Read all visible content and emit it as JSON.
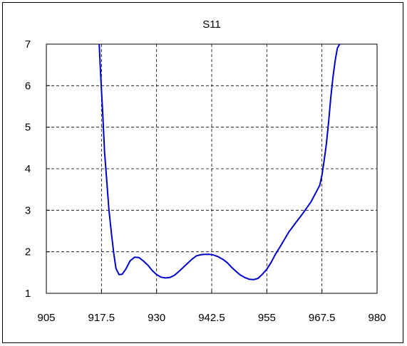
{
  "chart_data": {
    "type": "line",
    "title": "S11",
    "xlabel": "",
    "ylabel": "",
    "xlim": [
      905,
      980
    ],
    "ylim": [
      1,
      7
    ],
    "xticks": [
      "905",
      "917.5",
      "930",
      "942.5",
      "955",
      "967.5",
      "980"
    ],
    "yticks": [
      "1",
      "2",
      "3",
      "4",
      "5",
      "6",
      "7"
    ],
    "grid": true,
    "series": [
      {
        "color": "#0000cc",
        "x": [
          917,
          917.3,
          917.8,
          918.2,
          918.7,
          919.2,
          919.8,
          920.3,
          920.8,
          921.5,
          922.2,
          923.0,
          924.0,
          925.0,
          926.0,
          927.0,
          928.0,
          929.0,
          930.0,
          931.0,
          932.0,
          933.0,
          934.0,
          935.0,
          936.0,
          937.0,
          938.0,
          939.0,
          940.0,
          941.0,
          942.0,
          943.0,
          944.0,
          945.0,
          946.0,
          947.0,
          948.0,
          949.0,
          950.0,
          951.0,
          952.0,
          953.0,
          954.0,
          955.0,
          956.0,
          957.0,
          958.0,
          959.0,
          960.0,
          961.0,
          962.0,
          963.0,
          964.0,
          965.0,
          966.0,
          967.0,
          967.5,
          968.0,
          968.5,
          969.0,
          969.5,
          970.0,
          970.5,
          971.0,
          971.5
        ],
        "y": [
          7.0,
          6.3,
          5.3,
          4.4,
          3.7,
          3.0,
          2.4,
          1.95,
          1.6,
          1.45,
          1.46,
          1.58,
          1.78,
          1.87,
          1.86,
          1.78,
          1.68,
          1.55,
          1.45,
          1.39,
          1.37,
          1.38,
          1.43,
          1.52,
          1.62,
          1.72,
          1.82,
          1.9,
          1.93,
          1.94,
          1.94,
          1.92,
          1.88,
          1.82,
          1.74,
          1.63,
          1.53,
          1.44,
          1.38,
          1.34,
          1.33,
          1.36,
          1.46,
          1.58,
          1.75,
          1.95,
          2.12,
          2.3,
          2.48,
          2.62,
          2.76,
          2.9,
          3.05,
          3.2,
          3.4,
          3.6,
          3.85,
          4.2,
          4.6,
          5.1,
          5.7,
          6.2,
          6.6,
          6.9,
          7.0
        ]
      }
    ]
  }
}
